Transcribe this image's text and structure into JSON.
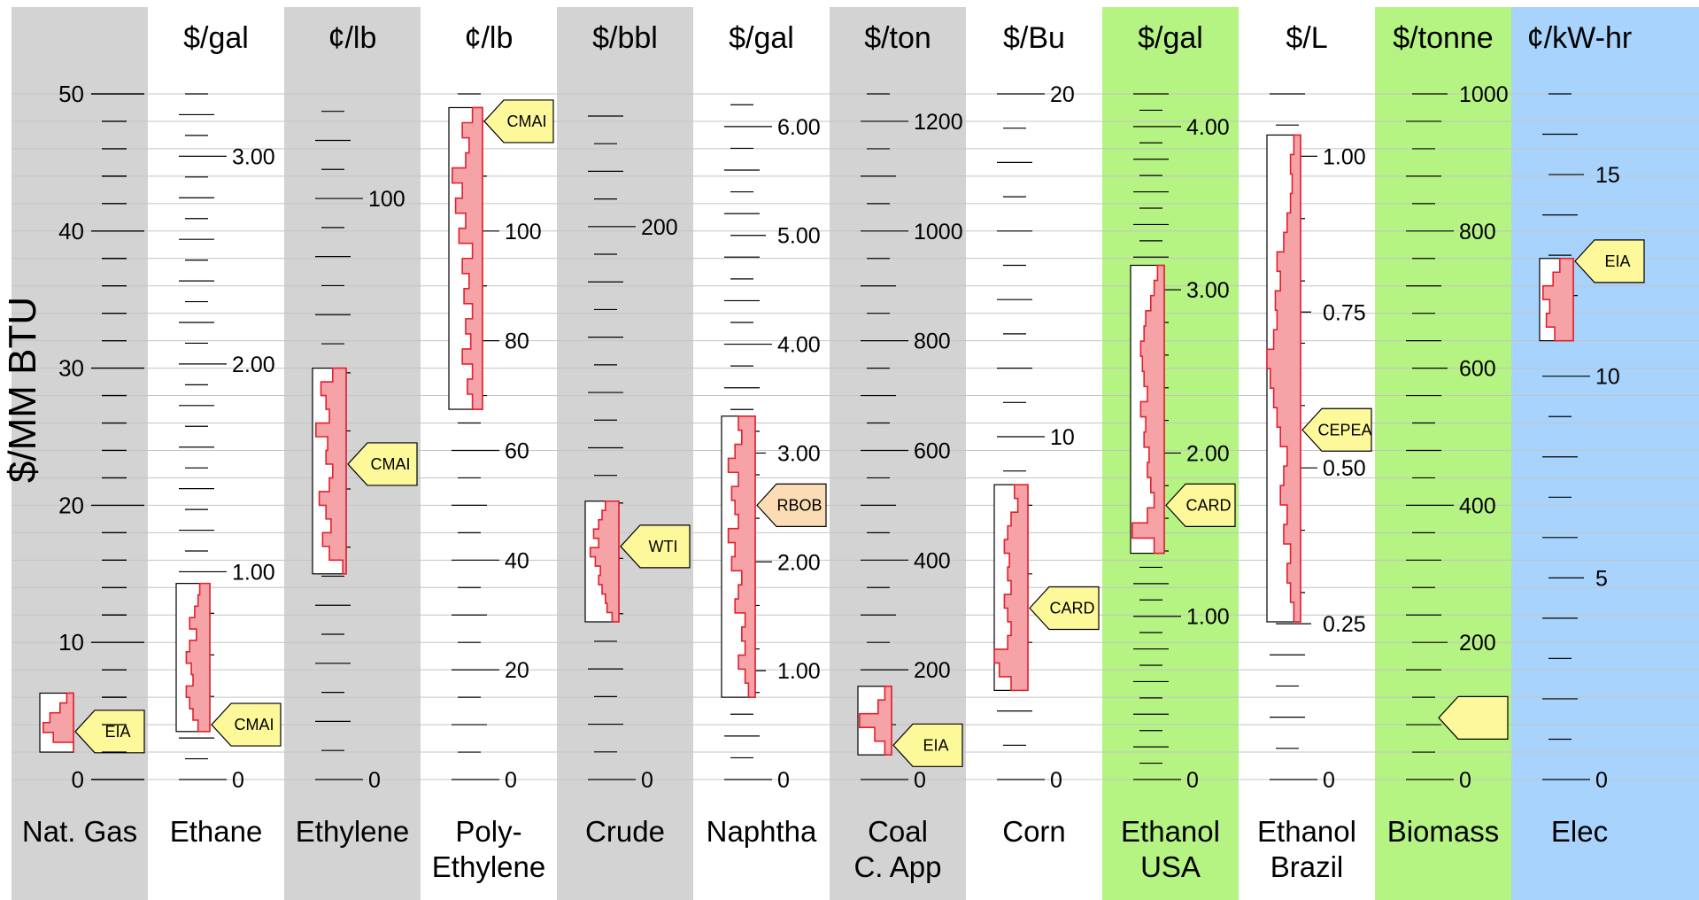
{
  "chart_data": {
    "type": "bar",
    "y_axis": {
      "label": "$/MM BTU",
      "range": [
        0,
        50
      ],
      "tick_values": [
        0,
        10,
        20,
        30,
        40,
        50
      ],
      "grid": true
    },
    "columns": [
      {
        "name": [
          "Nat. Gas"
        ],
        "unit": "",
        "background": "#d3d3d3",
        "scale_max": 50,
        "labeled_ticks": [],
        "minor_step": 2,
        "range": [
          2.0,
          6.3
        ],
        "bar_max": 0.9,
        "distribution": [
          0.0,
          0.6,
          0.9,
          0.7,
          0.4,
          0.2
        ],
        "tag": {
          "label": "EIA",
          "at": 3.5,
          "fill": "#fdf99b"
        }
      },
      {
        "name": [
          "Ethane"
        ],
        "unit": "$/gal",
        "background": "#ffffff",
        "scale_max": 3.3,
        "labeled_ticks": [
          {
            "value": 0,
            "text": "0"
          },
          {
            "value": 1.0,
            "text": "1.00"
          },
          {
            "value": 2.0,
            "text": "2.00"
          },
          {
            "value": 3.0,
            "text": "3.00"
          }
        ],
        "minor_step": 0.1,
        "range": [
          3.5,
          14.3
        ],
        "bar_max": 1.0,
        "distribution": [
          0.35,
          0.5,
          0.6,
          0.7,
          0.5,
          0.55,
          0.7,
          0.6,
          0.4,
          0.6,
          0.45,
          0.35,
          0.3
        ],
        "tag": {
          "label": "CMAI",
          "at": 4.0,
          "fill": "#fdf99b"
        }
      },
      {
        "name": [
          "Ethylene"
        ],
        "unit": "¢/lb",
        "background": "#d3d3d3",
        "scale_max": 118,
        "labeled_ticks": [
          {
            "value": 0,
            "text": "0"
          },
          {
            "value": 100,
            "text": "100"
          }
        ],
        "minor_step": 5,
        "range": [
          15.0,
          30.0
        ],
        "bar_max": 1.0,
        "distribution": [
          0.1,
          0.5,
          0.7,
          0.45,
          0.6,
          0.8,
          0.5,
          0.4,
          0.6,
          0.55,
          0.9,
          0.5,
          0.6,
          0.75,
          0.4
        ],
        "tag": {
          "label": "CMAI",
          "at": 23.0,
          "fill": "#fdf99b"
        }
      },
      {
        "name": [
          "Poly-",
          "Ethylene"
        ],
        "unit": "¢/lb",
        "background": "#ffffff",
        "scale_max": 125,
        "labeled_ticks": [
          {
            "value": 0,
            "text": "0"
          },
          {
            "value": 20,
            "text": "20"
          },
          {
            "value": 40,
            "text": "40"
          },
          {
            "value": 60,
            "text": "60"
          },
          {
            "value": 80,
            "text": "80"
          },
          {
            "value": 100,
            "text": "100"
          }
        ],
        "minor_step": 5,
        "range": [
          27.0,
          49.0
        ],
        "bar_max": 1.0,
        "distribution": [
          0.3,
          0.45,
          0.3,
          0.6,
          0.35,
          0.5,
          0.3,
          0.55,
          0.4,
          0.6,
          0.3,
          0.7,
          0.5,
          0.8,
          0.6,
          0.9,
          0.5,
          0.4,
          0.6,
          0.3
        ],
        "tag": {
          "label": "CMAI",
          "at": 48.0,
          "fill": "#fdf99b"
        }
      },
      {
        "name": [
          "Crude"
        ],
        "unit": "$/bbl",
        "background": "#d3d3d3",
        "scale_max": 248,
        "labeled_ticks": [
          {
            "value": 0,
            "text": "0"
          },
          {
            "value": 200,
            "text": "200"
          }
        ],
        "minor_step": 10,
        "range": [
          11.5,
          20.3
        ],
        "bar_max": 1.0,
        "distribution": [
          0.2,
          0.35,
          0.4,
          0.5,
          0.6,
          0.55,
          0.7,
          0.85,
          0.6,
          0.75,
          0.6,
          0.5,
          0.4
        ],
        "tag": {
          "label": "WTI",
          "at": 17.0,
          "fill": "#fdf99b"
        }
      },
      {
        "name": [
          "Naphtha"
        ],
        "unit": "$/gal",
        "background": "#ffffff",
        "scale_max": 6.3,
        "labeled_ticks": [
          {
            "value": 0,
            "text": "0"
          },
          {
            "value": 1.0,
            "text": "1.00"
          },
          {
            "value": 2.0,
            "text": "2.00"
          },
          {
            "value": 3.0,
            "text": "3.00"
          },
          {
            "value": 4.0,
            "text": "4.00"
          },
          {
            "value": 5.0,
            "text": "5.00"
          },
          {
            "value": 6.0,
            "text": "6.00"
          }
        ],
        "minor_step": 0.2,
        "range": [
          6.0,
          26.5
        ],
        "bar_max": 1.0,
        "distribution": [
          0.2,
          0.3,
          0.5,
          0.3,
          0.4,
          0.3,
          0.6,
          0.5,
          0.4,
          0.7,
          0.6,
          0.8,
          0.5,
          0.6,
          0.7,
          0.5,
          0.8,
          0.6,
          0.4,
          0.5
        ],
        "tag": {
          "label": "RBOB",
          "at": 20.0,
          "fill": "#fbdcb4"
        }
      },
      {
        "name": [
          "Coal",
          "C. App"
        ],
        "unit": "$/ton",
        "background": "#d3d3d3",
        "scale_max": 1250,
        "labeled_ticks": [
          {
            "value": 0,
            "text": "0"
          },
          {
            "value": 200,
            "text": "200"
          },
          {
            "value": 400,
            "text": "400"
          },
          {
            "value": 600,
            "text": "600"
          },
          {
            "value": 800,
            "text": "800"
          },
          {
            "value": 1000,
            "text": "1000"
          },
          {
            "value": 1200,
            "text": "1200"
          }
        ],
        "minor_step": 50,
        "range": [
          1.8,
          6.8
        ],
        "bar_max": 1.0,
        "distribution": [
          0.2,
          0.5,
          0.95,
          0.4,
          0.2
        ],
        "tag": {
          "label": "EIA",
          "at": 2.5,
          "fill": "#fdf99b"
        }
      },
      {
        "name": [
          "Corn"
        ],
        "unit": "$/Bu",
        "background": "#ffffff",
        "scale_max": 20,
        "labeled_ticks": [
          {
            "value": 0,
            "text": "0"
          },
          {
            "value": 10,
            "text": "10"
          },
          {
            "value": 20,
            "text": "20"
          }
        ],
        "minor_step": 1,
        "range": [
          6.5,
          21.5
        ],
        "bar_max": 1.0,
        "distribution": [
          0.5,
          0.85,
          1.0,
          0.6,
          0.5,
          0.6,
          0.7,
          0.5,
          0.6,
          0.55,
          0.7,
          0.6,
          0.5,
          0.3,
          0.4
        ],
        "tag": {
          "label": "CARD",
          "at": 12.5,
          "fill": "#fdf99b"
        }
      },
      {
        "name": [
          "Ethanol",
          "USA"
        ],
        "unit": "$/gal",
        "background": "#b5f383",
        "scale_max": 4.2,
        "labeled_ticks": [
          {
            "value": 0,
            "text": "0"
          },
          {
            "value": 1.0,
            "text": "1.00"
          },
          {
            "value": 2.0,
            "text": "2.00"
          },
          {
            "value": 3.0,
            "text": "3.00"
          },
          {
            "value": 4.0,
            "text": "4.00"
          }
        ],
        "minor_step": 0.1,
        "range": [
          16.5,
          37.5
        ],
        "bar_max": 1.0,
        "distribution": [
          0.3,
          0.95,
          0.5,
          0.3,
          0.4,
          0.5,
          0.45,
          0.6,
          0.55,
          0.7,
          0.5,
          0.6,
          0.65,
          0.7,
          0.6,
          0.55,
          0.4,
          0.3,
          0.2
        ],
        "tag": {
          "label": "CARD",
          "at": 20.0,
          "fill": "#fdf99b"
        }
      },
      {
        "name": [
          "Ethanol",
          "Brazil"
        ],
        "unit": "$/L",
        "background": "#ffffff",
        "scale_max": 1.1,
        "labeled_ticks": [
          {
            "value": 0,
            "text": "0"
          },
          {
            "value": 0.25,
            "text": "0.25"
          },
          {
            "value": 0.5,
            "text": "0.50"
          },
          {
            "value": 0.75,
            "text": "0.75"
          },
          {
            "value": 1.0,
            "text": "1.00"
          }
        ],
        "minor_step": 0.05,
        "range": [
          11.5,
          47.0
        ],
        "bar_max": 1.0,
        "distribution": [
          0.2,
          0.3,
          0.4,
          0.3,
          0.5,
          0.4,
          0.6,
          0.5,
          0.4,
          0.6,
          0.7,
          0.8,
          0.9,
          1.0,
          0.8,
          0.7,
          0.75,
          0.6,
          0.7,
          0.5,
          0.4,
          0.3,
          0.25,
          0.3,
          0.2
        ],
        "tag": {
          "label": "CEPEA",
          "at": 25.5,
          "fill": "#fdf99b"
        }
      },
      {
        "name": [
          "Biomass"
        ],
        "unit": "$/tonne",
        "background": "#b5f383",
        "scale_max": 1000,
        "labeled_ticks": [
          {
            "value": 0,
            "text": "0"
          },
          {
            "value": 200,
            "text": "200"
          },
          {
            "value": 400,
            "text": "400"
          },
          {
            "value": 600,
            "text": "600"
          },
          {
            "value": 800,
            "text": "800"
          },
          {
            "value": 1000,
            "text": "1000"
          }
        ],
        "minor_step": 40,
        "range": null,
        "bar_max": 0,
        "distribution": [],
        "tag": {
          "label": "",
          "at": 4.5,
          "fill": "#fdf99b"
        }
      },
      {
        "name": [
          "Elec"
        ],
        "unit": "¢/kW-hr",
        "background": "#a8d3fc",
        "scale_max": 17,
        "labeled_ticks": [
          {
            "value": 0,
            "text": "0"
          },
          {
            "value": 5,
            "text": "5"
          },
          {
            "value": 10,
            "text": "10"
          },
          {
            "value": 15,
            "text": "15"
          }
        ],
        "minor_step": 1,
        "range": [
          32.0,
          38.0
        ],
        "bar_max": 1.0,
        "distribution": [
          0.55,
          0.8,
          0.7,
          0.9,
          0.6,
          0.4
        ],
        "tag": {
          "label": "EIA",
          "at": 37.8,
          "fill": "#fdf99b"
        }
      }
    ]
  }
}
